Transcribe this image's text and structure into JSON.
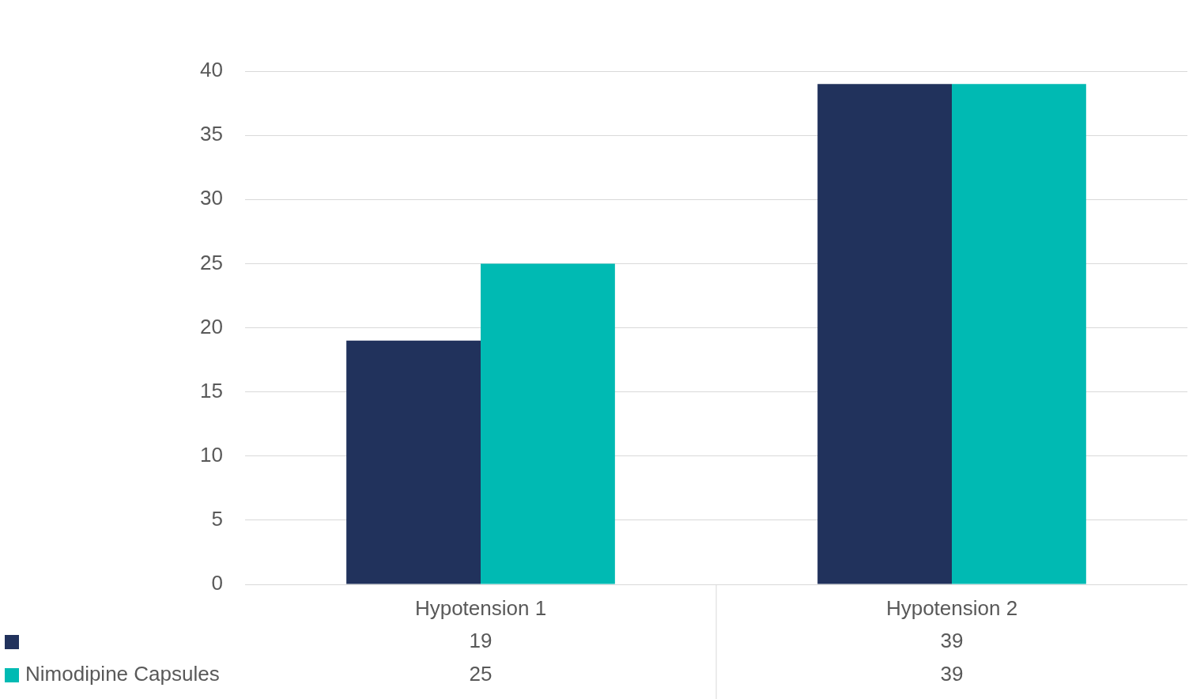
{
  "chart_data": {
    "type": "bar",
    "categories": [
      "Hypotension 1",
      "Hypotension 2"
    ],
    "series": [
      {
        "color": "#21325c",
        "values": [
          19,
          39
        ]
      },
      {
        "name": "Nimodipine Capsules",
        "color": "#00bab3",
        "values": [
          25,
          39
        ]
      }
    ],
    "ylim": [
      0,
      40
    ],
    "yticks": [
      0,
      5,
      10,
      15,
      20,
      25,
      30,
      35,
      40
    ],
    "grid": "y",
    "data_labels": true,
    "legend": "bottom"
  }
}
